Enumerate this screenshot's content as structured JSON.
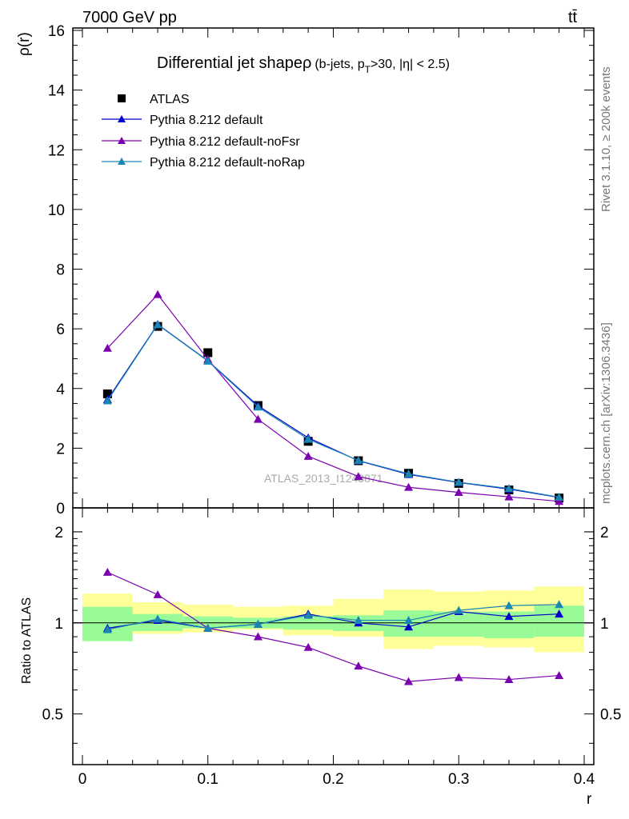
{
  "header": {
    "energy_label": "7000 GeV pp",
    "process_label": "tt̄"
  },
  "side_labels": {
    "rivet": "Rivet 3.1.10, ≥ 200k events",
    "mcplots": "mcplots.cern.ch [arXiv:1306.3436]"
  },
  "watermark": "ATLAS_2013_I1243871",
  "colors": {
    "atlas": "#000000",
    "default": "#0000cc",
    "noFsr": "#7a00b0",
    "noRap": "#1a86b4",
    "band_inner": "#98fb98",
    "band_outer": "#ffff99"
  },
  "chart_data": [
    {
      "type": "line",
      "title": "Differential jet shapeρ",
      "title_suffix": "(b-jets, p",
      "title_sub": "T",
      "title_tail": ">30, |η| < 2.5)",
      "xlabel": "",
      "ylabel": "ρ(r)",
      "xlim": [
        0,
        0.4
      ],
      "ylim": [
        0,
        16
      ],
      "y_ticks": [
        "0",
        "2",
        "4",
        "6",
        "8",
        "10",
        "12",
        "14",
        "16"
      ],
      "x": [
        0.02,
        0.06,
        0.1,
        0.14,
        0.18,
        0.22,
        0.26,
        0.3,
        0.34,
        0.38
      ],
      "series": [
        {
          "name": "ATLAS",
          "key": "atlas",
          "marker": "square",
          "values": [
            3.82,
            6.08,
            5.2,
            3.43,
            2.23,
            1.58,
            1.16,
            0.82,
            0.6,
            0.33
          ]
        },
        {
          "name": "Pythia 8.212 default",
          "key": "default",
          "marker": "triangle",
          "values": [
            3.63,
            6.15,
            4.93,
            3.42,
            2.35,
            1.58,
            1.12,
            0.85,
            0.63,
            0.35
          ]
        },
        {
          "name": "Pythia 8.212 default-noFsr",
          "key": "noFsr",
          "marker": "triangle",
          "values": [
            5.35,
            7.15,
            4.98,
            2.97,
            1.73,
            1.05,
            0.69,
            0.52,
            0.37,
            0.22
          ]
        },
        {
          "name": "Pythia 8.212 default-noRap",
          "key": "noRap",
          "marker": "triangle",
          "values": [
            3.59,
            6.14,
            4.92,
            3.38,
            2.3,
            1.59,
            1.14,
            0.86,
            0.65,
            0.36
          ]
        }
      ]
    },
    {
      "type": "line",
      "title": "",
      "xlabel": "r",
      "ylabel": "Ratio to ATLAS",
      "xlim": [
        0,
        0.4
      ],
      "ylim": [
        0.34,
        2.4
      ],
      "y_ticks_major": [
        0.5,
        1,
        2
      ],
      "y_tick_labels": [
        "0.5",
        "1",
        "2"
      ],
      "x_ticks": [
        0,
        0.1,
        0.2,
        0.3,
        0.4
      ],
      "x_tick_labels": [
        "0",
        "0.1",
        "0.2",
        "0.3",
        "0.4"
      ],
      "x": [
        0.02,
        0.06,
        0.1,
        0.14,
        0.18,
        0.22,
        0.26,
        0.3,
        0.34,
        0.38
      ],
      "bands": {
        "inner": [
          [
            0.87,
            1.13
          ],
          [
            0.94,
            1.07
          ],
          [
            0.96,
            1.05
          ],
          [
            0.96,
            1.04
          ],
          [
            0.95,
            1.05
          ],
          [
            0.94,
            1.06
          ],
          [
            0.9,
            1.1
          ],
          [
            0.9,
            1.09
          ],
          [
            0.89,
            1.09
          ],
          [
            0.9,
            1.14
          ]
        ],
        "outer": [
          [
            0.87,
            1.25
          ],
          [
            0.92,
            1.17
          ],
          [
            0.93,
            1.15
          ],
          [
            0.95,
            1.13
          ],
          [
            0.91,
            1.14
          ],
          [
            0.9,
            1.2
          ],
          [
            0.82,
            1.29
          ],
          [
            0.84,
            1.27
          ],
          [
            0.83,
            1.28
          ],
          [
            0.8,
            1.32
          ]
        ]
      },
      "series": [
        {
          "name": "Pythia 8.212 default",
          "key": "default",
          "values": [
            0.96,
            1.02,
            0.96,
            0.99,
            1.07,
            1.0,
            0.97,
            1.09,
            1.05,
            1.07
          ]
        },
        {
          "name": "Pythia 8.212 default-noFsr",
          "key": "noFsr",
          "values": [
            1.47,
            1.24,
            0.96,
            0.9,
            0.83,
            0.72,
            0.64,
            0.66,
            0.65,
            0.67
          ]
        },
        {
          "name": "Pythia 8.212 default-noRap",
          "key": "noRap",
          "values": [
            0.95,
            1.03,
            0.96,
            0.99,
            1.06,
            1.02,
            1.02,
            1.1,
            1.14,
            1.15
          ]
        }
      ]
    }
  ]
}
